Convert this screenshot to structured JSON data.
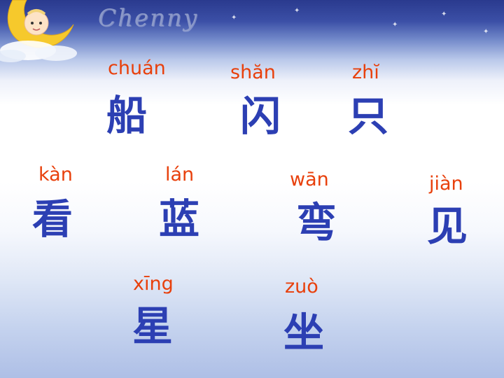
{
  "brand_text": "Chenny",
  "words": [
    {
      "pinyin": "chuán",
      "hanzi": "船"
    },
    {
      "pinyin": "shăn",
      "hanzi": "闪"
    },
    {
      "pinyin": "zhĭ",
      "hanzi": "只"
    },
    {
      "pinyin": "kàn",
      "hanzi": "看"
    },
    {
      "pinyin": "lán",
      "hanzi": "蓝"
    },
    {
      "pinyin": "wān",
      "hanzi": "弯"
    },
    {
      "pinyin": "jiàn",
      "hanzi": "见"
    },
    {
      "pinyin": "xīng",
      "hanzi": "星"
    },
    {
      "pinyin": "zuò",
      "hanzi": "坐"
    }
  ],
  "colors": {
    "pinyin": "#e8400c",
    "hanzi": "#2c3fb3"
  }
}
